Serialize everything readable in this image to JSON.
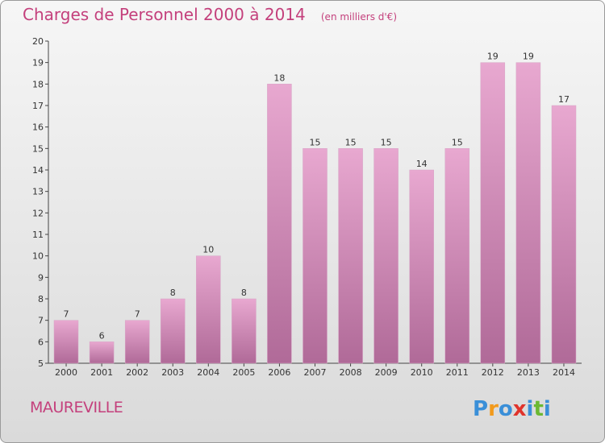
{
  "colors": {
    "accent": "#c4407c",
    "bar_top": "#e8a8d0",
    "bar_bottom": "#b06a98",
    "logo": [
      "#3a8fd8",
      "#f29a1c",
      "#3a8fd8",
      "#e0342c",
      "#3a8fd8",
      "#6bb832"
    ]
  },
  "commune": "MAUREVILLE",
  "logo_text": "Proxiti",
  "chart_data": {
    "type": "bar",
    "title": "Charges de Personnel 2000 à 2014",
    "subtitle": "(en milliers d'€)",
    "xlabel": "",
    "ylabel": "",
    "categories": [
      "2000",
      "2001",
      "2002",
      "2003",
      "2004",
      "2005",
      "2006",
      "2007",
      "2008",
      "2009",
      "2010",
      "2011",
      "2012",
      "2013",
      "2014"
    ],
    "values": [
      7,
      6,
      7,
      8,
      10,
      8,
      18,
      15,
      15,
      15,
      14,
      15,
      19,
      19,
      17
    ],
    "ylim": [
      5,
      20
    ],
    "yticks": [
      5,
      6,
      7,
      8,
      9,
      10,
      11,
      12,
      13,
      14,
      15,
      16,
      17,
      18,
      19,
      20
    ],
    "grid": false,
    "data_labels": true
  }
}
